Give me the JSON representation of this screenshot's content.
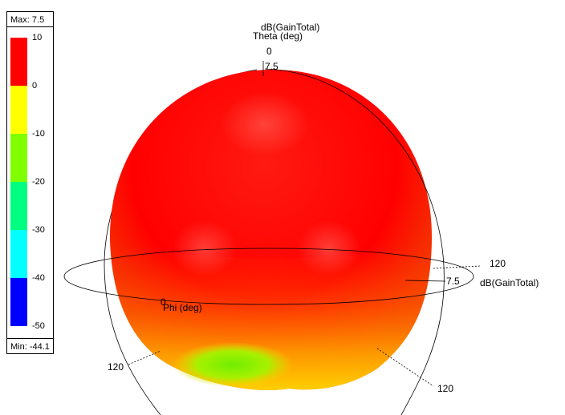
{
  "chart_data": {
    "type": "3d-radiation-pattern",
    "quantity": "dB(GainTotal)",
    "max_label": "Max: 7.5",
    "min_label": "Min: -44.1",
    "max": 7.5,
    "min": -44.1,
    "legend": {
      "ticks": [
        "10",
        "0",
        "-10",
        "-20",
        "-30",
        "-40",
        "-50"
      ],
      "bands": [
        {
          "from": 10,
          "to": 0,
          "color": "#ff0000"
        },
        {
          "from": 0,
          "to": -10,
          "color": "#ffff00"
        },
        {
          "from": -10,
          "to": -20,
          "color": "#80ff00"
        },
        {
          "from": -20,
          "to": -30,
          "color": "#00ff80"
        },
        {
          "from": -30,
          "to": -40,
          "color": "#00ffff"
        },
        {
          "from": -40,
          "to": -50,
          "color": "#0000ff"
        }
      ]
    },
    "axes": {
      "z_title": "dB(GainTotal)",
      "z_subtitle": "Theta (deg)",
      "z_zero": "0",
      "z_value": "7.5",
      "horizontal_value": "7.5",
      "horizontal_title": "dB(GainTotal)",
      "horizontal_120": "120",
      "phi_zero": "0",
      "phi_title": "Phi (deg)",
      "left_120": "120",
      "bottom_120": "120"
    }
  }
}
